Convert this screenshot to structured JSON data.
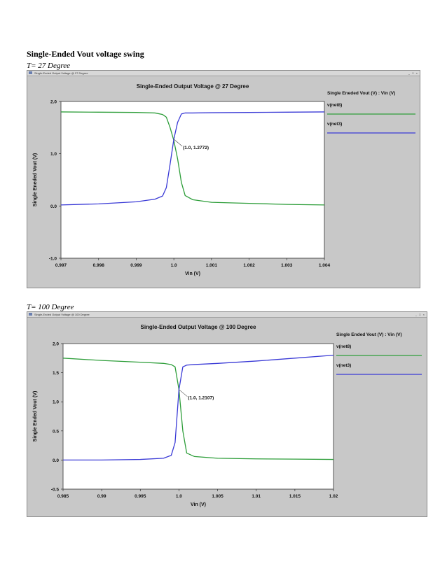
{
  "heading": "Single-Ended Vout voltage swing",
  "charts": [
    {
      "label": "T= 27 Degree",
      "window_title": "Single-Ended Output Voltage @ 27 Degree",
      "window_buttons": "_ □ ×",
      "chart_data": {
        "type": "line",
        "title": "Single-Ended Output Voltage @ 27 Degree",
        "xlabel": "Vin (V)",
        "ylabel": "Single Eneded Vout (V)",
        "legend_title": "Single Eneded Vout (V) : Vin (V)",
        "legend_position": "right",
        "xlim": [
          0.997,
          1.004
        ],
        "ylim": [
          -1.0,
          2.0
        ],
        "xticks": [
          0.997,
          0.998,
          0.999,
          1.0,
          1.001,
          1.002,
          1.003,
          1.004
        ],
        "xtick_labels": [
          "0.997",
          "0.998",
          "0.999",
          "1.0",
          "1.001",
          "1.002",
          "1.003",
          "1.004"
        ],
        "yticks": [
          -1.0,
          0.0,
          1.0,
          2.0
        ],
        "ytick_labels": [
          "-1.0",
          "0.0",
          "1.0",
          "2.0"
        ],
        "grid": false,
        "annotation": {
          "text": "(1.0, 1.2772)",
          "x": 1.0,
          "y": 1.2772
        },
        "series": [
          {
            "name": "v(net8)",
            "color": "#2e9e3a",
            "x": [
              0.997,
              0.998,
              0.999,
              0.9995,
              0.9997,
              0.9998,
              0.9999,
              1.0,
              1.0001,
              1.0002,
              1.0003,
              1.0005,
              1.001,
              1.002,
              1.003,
              1.004
            ],
            "y": [
              1.8,
              1.795,
              1.79,
              1.78,
              1.75,
              1.7,
              1.5,
              1.25,
              0.9,
              0.45,
              0.2,
              0.12,
              0.07,
              0.05,
              0.03,
              0.02
            ]
          },
          {
            "name": "v(net3)",
            "color": "#3a3ad6",
            "x": [
              0.997,
              0.998,
              0.999,
              0.9995,
              0.9997,
              0.9998,
              0.9999,
              1.0,
              1.0001,
              1.0002,
              1.0003,
              1.0005,
              1.001,
              1.002,
              1.003,
              1.004
            ],
            "y": [
              0.02,
              0.04,
              0.08,
              0.13,
              0.19,
              0.35,
              0.8,
              1.28,
              1.6,
              1.76,
              1.78,
              1.78,
              1.785,
              1.79,
              1.795,
              1.8
            ]
          }
        ]
      }
    },
    {
      "label": "T= 100 Degree",
      "window_title": "Single-Ended Output Voltage @ 100 Degree",
      "window_buttons": "_ □ ×",
      "chart_data": {
        "type": "line",
        "title": "Single-Ended Output Voltage @ 100 Degree",
        "xlabel": "Vin (V)",
        "ylabel": "Single Ended Vout (V)",
        "legend_title": "Single Ended Vout (V) : Vin (V)",
        "legend_position": "right",
        "xlim": [
          0.985,
          1.02
        ],
        "ylim": [
          -0.5,
          2.0
        ],
        "xticks": [
          0.985,
          0.99,
          0.995,
          1.0,
          1.005,
          1.01,
          1.015,
          1.02
        ],
        "xtick_labels": [
          "0.985",
          "0.99",
          "0.995",
          "1.0",
          "1.005",
          "1.01",
          "1.015",
          "1.02"
        ],
        "yticks": [
          -0.5,
          0.0,
          0.5,
          1.0,
          1.5,
          2.0
        ],
        "ytick_labels": [
          "-0.5",
          "0.0",
          "0.5",
          "1.0",
          "1.5",
          "2.0"
        ],
        "grid": false,
        "annotation": {
          "text": "(1.0, 1.2107)",
          "x": 1.0,
          "y": 1.2107
        },
        "series": [
          {
            "name": "v(net8)",
            "color": "#2e9e3a",
            "x": [
              0.985,
              0.99,
              0.995,
              0.998,
              0.999,
              0.9995,
              1.0,
              1.0005,
              1.001,
              1.002,
              1.005,
              1.01,
              1.015,
              1.02
            ],
            "y": [
              1.75,
              1.71,
              1.68,
              1.66,
              1.64,
              1.6,
              1.21,
              0.5,
              0.12,
              0.06,
              0.03,
              0.02,
              0.015,
              0.01
            ]
          },
          {
            "name": "v(net3)",
            "color": "#3a3ad6",
            "x": [
              0.985,
              0.99,
              0.995,
              0.998,
              0.999,
              0.9995,
              1.0,
              1.0005,
              1.001,
              1.002,
              1.005,
              1.01,
              1.015,
              1.02
            ],
            "y": [
              0.0,
              0.0,
              0.01,
              0.03,
              0.08,
              0.3,
              1.21,
              1.6,
              1.63,
              1.64,
              1.66,
              1.7,
              1.75,
              1.8
            ]
          }
        ]
      }
    }
  ]
}
